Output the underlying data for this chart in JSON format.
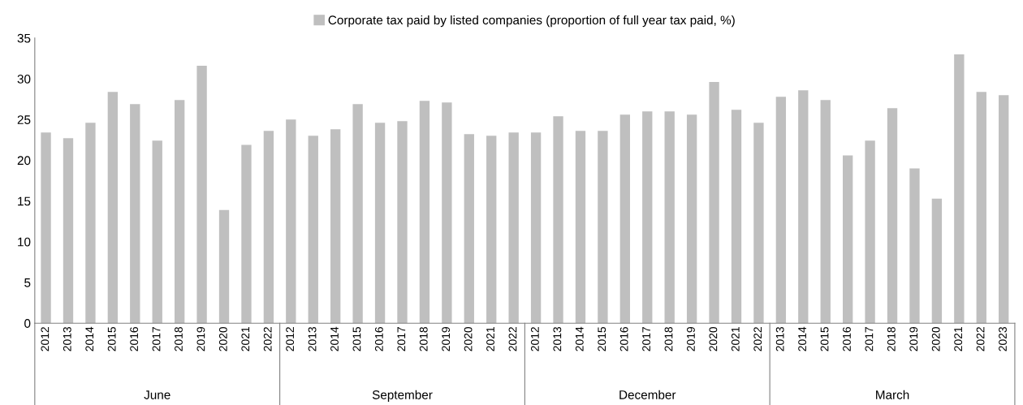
{
  "chart_data": {
    "type": "bar",
    "categories": [
      "2012",
      "2013",
      "2014",
      "2015",
      "2016",
      "2017",
      "2018",
      "2019",
      "2020",
      "2021",
      "2022",
      "2012",
      "2013",
      "2014",
      "2015",
      "2016",
      "2017",
      "2018",
      "2019",
      "2020",
      "2021",
      "2022",
      "2012",
      "2013",
      "2014",
      "2015",
      "2016",
      "2017",
      "2018",
      "2019",
      "2020",
      "2021",
      "2022",
      "2013",
      "2014",
      "2015",
      "2016",
      "2017",
      "2018",
      "2019",
      "2020",
      "2021",
      "2022",
      "2023"
    ],
    "series": [
      {
        "name": "Corporate tax paid by listed companies (proportion of full year tax paid, %)",
        "color": "#bfbfbf",
        "values": [
          23.4,
          22.7,
          24.6,
          28.4,
          26.9,
          22.4,
          27.4,
          31.6,
          13.9,
          21.9,
          23.6,
          25.0,
          23.0,
          23.8,
          26.9,
          24.6,
          24.8,
          27.3,
          27.1,
          23.2,
          23.0,
          23.4,
          23.4,
          25.4,
          23.6,
          23.6,
          25.6,
          26.0,
          26.0,
          25.6,
          29.6,
          26.2,
          24.6,
          27.8,
          28.6,
          27.4,
          20.6,
          22.4,
          26.4,
          19.0,
          15.3,
          33.0,
          28.4,
          28.0
        ]
      }
    ],
    "annotations": [
      "June",
      "September",
      "December",
      "March"
    ],
    "ylim": [
      0,
      35
    ],
    "yticks": [
      0,
      5,
      10,
      15,
      20,
      25,
      30,
      35
    ],
    "grid": false,
    "legend": "top"
  }
}
